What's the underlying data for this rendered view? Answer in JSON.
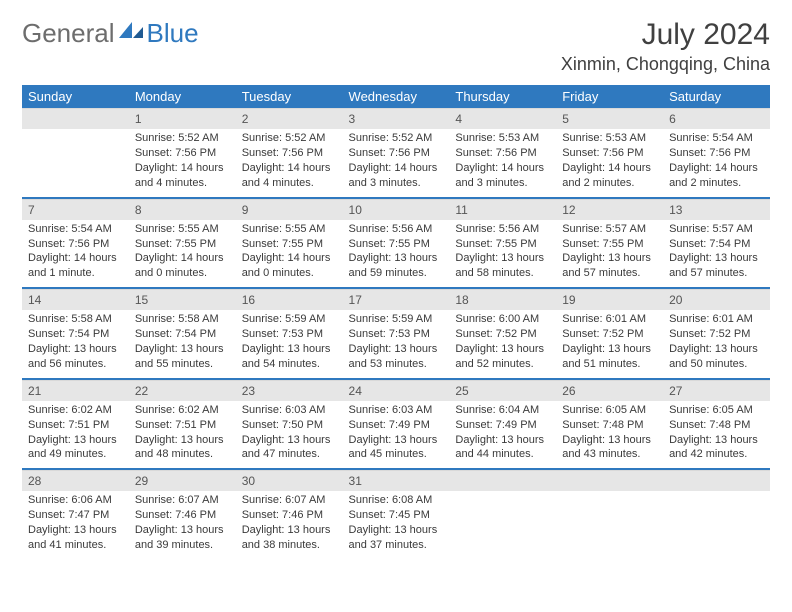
{
  "brand": {
    "part1": "General",
    "part2": "Blue"
  },
  "title": "July 2024",
  "location": "Xinmin, Chongqing, China",
  "colors": {
    "accent": "#2f79bf",
    "header_bg": "#2f79bf",
    "header_fg": "#ffffff",
    "daynum_bg": "#e6e6e6",
    "text": "#3a3a3a"
  },
  "weekdays": [
    "Sunday",
    "Monday",
    "Tuesday",
    "Wednesday",
    "Thursday",
    "Friday",
    "Saturday"
  ],
  "weeks": [
    [
      null,
      {
        "n": "1",
        "sr": "Sunrise: 5:52 AM",
        "ss": "Sunset: 7:56 PM",
        "dl": "Daylight: 14 hours and 4 minutes."
      },
      {
        "n": "2",
        "sr": "Sunrise: 5:52 AM",
        "ss": "Sunset: 7:56 PM",
        "dl": "Daylight: 14 hours and 4 minutes."
      },
      {
        "n": "3",
        "sr": "Sunrise: 5:52 AM",
        "ss": "Sunset: 7:56 PM",
        "dl": "Daylight: 14 hours and 3 minutes."
      },
      {
        "n": "4",
        "sr": "Sunrise: 5:53 AM",
        "ss": "Sunset: 7:56 PM",
        "dl": "Daylight: 14 hours and 3 minutes."
      },
      {
        "n": "5",
        "sr": "Sunrise: 5:53 AM",
        "ss": "Sunset: 7:56 PM",
        "dl": "Daylight: 14 hours and 2 minutes."
      },
      {
        "n": "6",
        "sr": "Sunrise: 5:54 AM",
        "ss": "Sunset: 7:56 PM",
        "dl": "Daylight: 14 hours and 2 minutes."
      }
    ],
    [
      {
        "n": "7",
        "sr": "Sunrise: 5:54 AM",
        "ss": "Sunset: 7:56 PM",
        "dl": "Daylight: 14 hours and 1 minute."
      },
      {
        "n": "8",
        "sr": "Sunrise: 5:55 AM",
        "ss": "Sunset: 7:55 PM",
        "dl": "Daylight: 14 hours and 0 minutes."
      },
      {
        "n": "9",
        "sr": "Sunrise: 5:55 AM",
        "ss": "Sunset: 7:55 PM",
        "dl": "Daylight: 14 hours and 0 minutes."
      },
      {
        "n": "10",
        "sr": "Sunrise: 5:56 AM",
        "ss": "Sunset: 7:55 PM",
        "dl": "Daylight: 13 hours and 59 minutes."
      },
      {
        "n": "11",
        "sr": "Sunrise: 5:56 AM",
        "ss": "Sunset: 7:55 PM",
        "dl": "Daylight: 13 hours and 58 minutes."
      },
      {
        "n": "12",
        "sr": "Sunrise: 5:57 AM",
        "ss": "Sunset: 7:55 PM",
        "dl": "Daylight: 13 hours and 57 minutes."
      },
      {
        "n": "13",
        "sr": "Sunrise: 5:57 AM",
        "ss": "Sunset: 7:54 PM",
        "dl": "Daylight: 13 hours and 57 minutes."
      }
    ],
    [
      {
        "n": "14",
        "sr": "Sunrise: 5:58 AM",
        "ss": "Sunset: 7:54 PM",
        "dl": "Daylight: 13 hours and 56 minutes."
      },
      {
        "n": "15",
        "sr": "Sunrise: 5:58 AM",
        "ss": "Sunset: 7:54 PM",
        "dl": "Daylight: 13 hours and 55 minutes."
      },
      {
        "n": "16",
        "sr": "Sunrise: 5:59 AM",
        "ss": "Sunset: 7:53 PM",
        "dl": "Daylight: 13 hours and 54 minutes."
      },
      {
        "n": "17",
        "sr": "Sunrise: 5:59 AM",
        "ss": "Sunset: 7:53 PM",
        "dl": "Daylight: 13 hours and 53 minutes."
      },
      {
        "n": "18",
        "sr": "Sunrise: 6:00 AM",
        "ss": "Sunset: 7:52 PM",
        "dl": "Daylight: 13 hours and 52 minutes."
      },
      {
        "n": "19",
        "sr": "Sunrise: 6:01 AM",
        "ss": "Sunset: 7:52 PM",
        "dl": "Daylight: 13 hours and 51 minutes."
      },
      {
        "n": "20",
        "sr": "Sunrise: 6:01 AM",
        "ss": "Sunset: 7:52 PM",
        "dl": "Daylight: 13 hours and 50 minutes."
      }
    ],
    [
      {
        "n": "21",
        "sr": "Sunrise: 6:02 AM",
        "ss": "Sunset: 7:51 PM",
        "dl": "Daylight: 13 hours and 49 minutes."
      },
      {
        "n": "22",
        "sr": "Sunrise: 6:02 AM",
        "ss": "Sunset: 7:51 PM",
        "dl": "Daylight: 13 hours and 48 minutes."
      },
      {
        "n": "23",
        "sr": "Sunrise: 6:03 AM",
        "ss": "Sunset: 7:50 PM",
        "dl": "Daylight: 13 hours and 47 minutes."
      },
      {
        "n": "24",
        "sr": "Sunrise: 6:03 AM",
        "ss": "Sunset: 7:49 PM",
        "dl": "Daylight: 13 hours and 45 minutes."
      },
      {
        "n": "25",
        "sr": "Sunrise: 6:04 AM",
        "ss": "Sunset: 7:49 PM",
        "dl": "Daylight: 13 hours and 44 minutes."
      },
      {
        "n": "26",
        "sr": "Sunrise: 6:05 AM",
        "ss": "Sunset: 7:48 PM",
        "dl": "Daylight: 13 hours and 43 minutes."
      },
      {
        "n": "27",
        "sr": "Sunrise: 6:05 AM",
        "ss": "Sunset: 7:48 PM",
        "dl": "Daylight: 13 hours and 42 minutes."
      }
    ],
    [
      {
        "n": "28",
        "sr": "Sunrise: 6:06 AM",
        "ss": "Sunset: 7:47 PM",
        "dl": "Daylight: 13 hours and 41 minutes."
      },
      {
        "n": "29",
        "sr": "Sunrise: 6:07 AM",
        "ss": "Sunset: 7:46 PM",
        "dl": "Daylight: 13 hours and 39 minutes."
      },
      {
        "n": "30",
        "sr": "Sunrise: 6:07 AM",
        "ss": "Sunset: 7:46 PM",
        "dl": "Daylight: 13 hours and 38 minutes."
      },
      {
        "n": "31",
        "sr": "Sunrise: 6:08 AM",
        "ss": "Sunset: 7:45 PM",
        "dl": "Daylight: 13 hours and 37 minutes."
      },
      null,
      null,
      null
    ]
  ]
}
